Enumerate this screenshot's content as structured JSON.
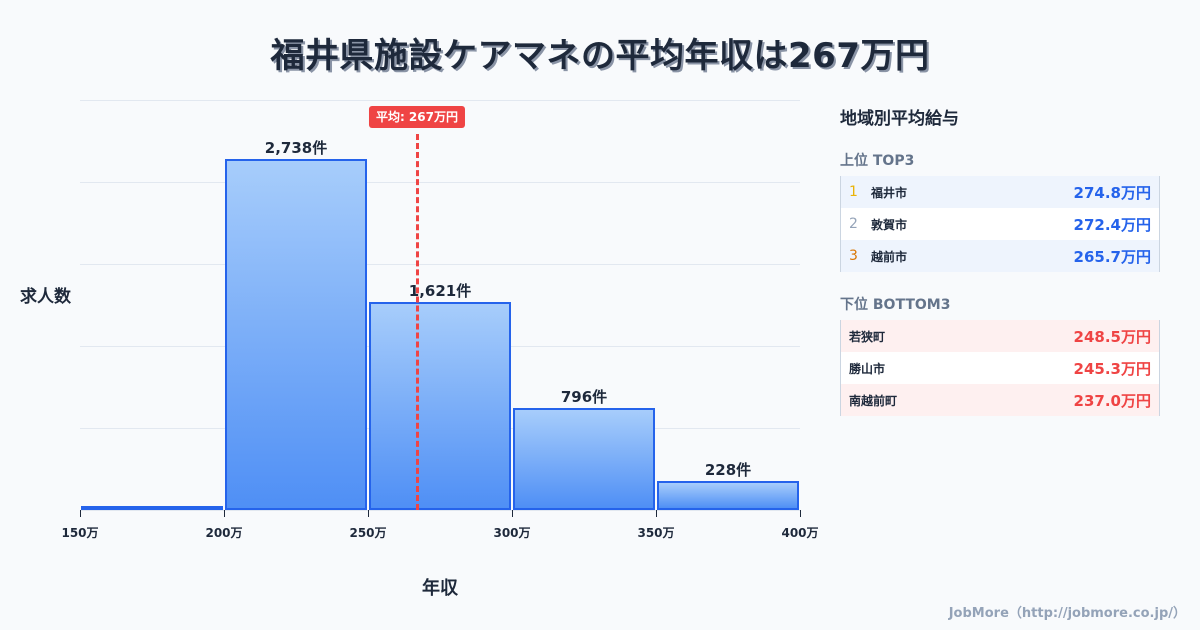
{
  "title": "福井県施設ケアマネの平均年収は267万円",
  "chart_data": {
    "type": "bar",
    "title": "福井県施設ケアマネの平均年収は267万円",
    "xlabel": "年収",
    "ylabel": "求人数",
    "categories": [
      "150万-200万",
      "200万-250万",
      "250万-300万",
      "300万-350万",
      "350万-400万"
    ],
    "bin_edges": [
      150,
      200,
      250,
      300,
      350,
      400
    ],
    "x_tick_labels": [
      "150万",
      "200万",
      "250万",
      "300万",
      "350万",
      "400万"
    ],
    "values": [
      20,
      2738,
      1621,
      796,
      228
    ],
    "value_labels": [
      "",
      "2,738件",
      "1,621件",
      "796件",
      "228件"
    ],
    "ylim": [
      0,
      3200
    ],
    "grid": true,
    "mean": {
      "value": 267,
      "label": "平均: 267万円"
    }
  },
  "panel": {
    "title": "地域別平均給与",
    "top": {
      "heading": "上位 TOP3",
      "rows": [
        {
          "rank": "1",
          "name": "福井市",
          "value": "274.8万円",
          "color": "#eab308"
        },
        {
          "rank": "2",
          "name": "敦賀市",
          "value": "272.4万円",
          "color": "#94a3b8"
        },
        {
          "rank": "3",
          "name": "越前市",
          "value": "265.7万円",
          "color": "#d97706"
        }
      ]
    },
    "bottom": {
      "heading": "下位 BOTTOM3",
      "rows": [
        {
          "name": "若狭町",
          "value": "248.5万円"
        },
        {
          "name": "勝山市",
          "value": "245.3万円"
        },
        {
          "name": "南越前町",
          "value": "237.0万円"
        }
      ]
    }
  },
  "footer": "JobMore（http://jobmore.co.jp/）"
}
